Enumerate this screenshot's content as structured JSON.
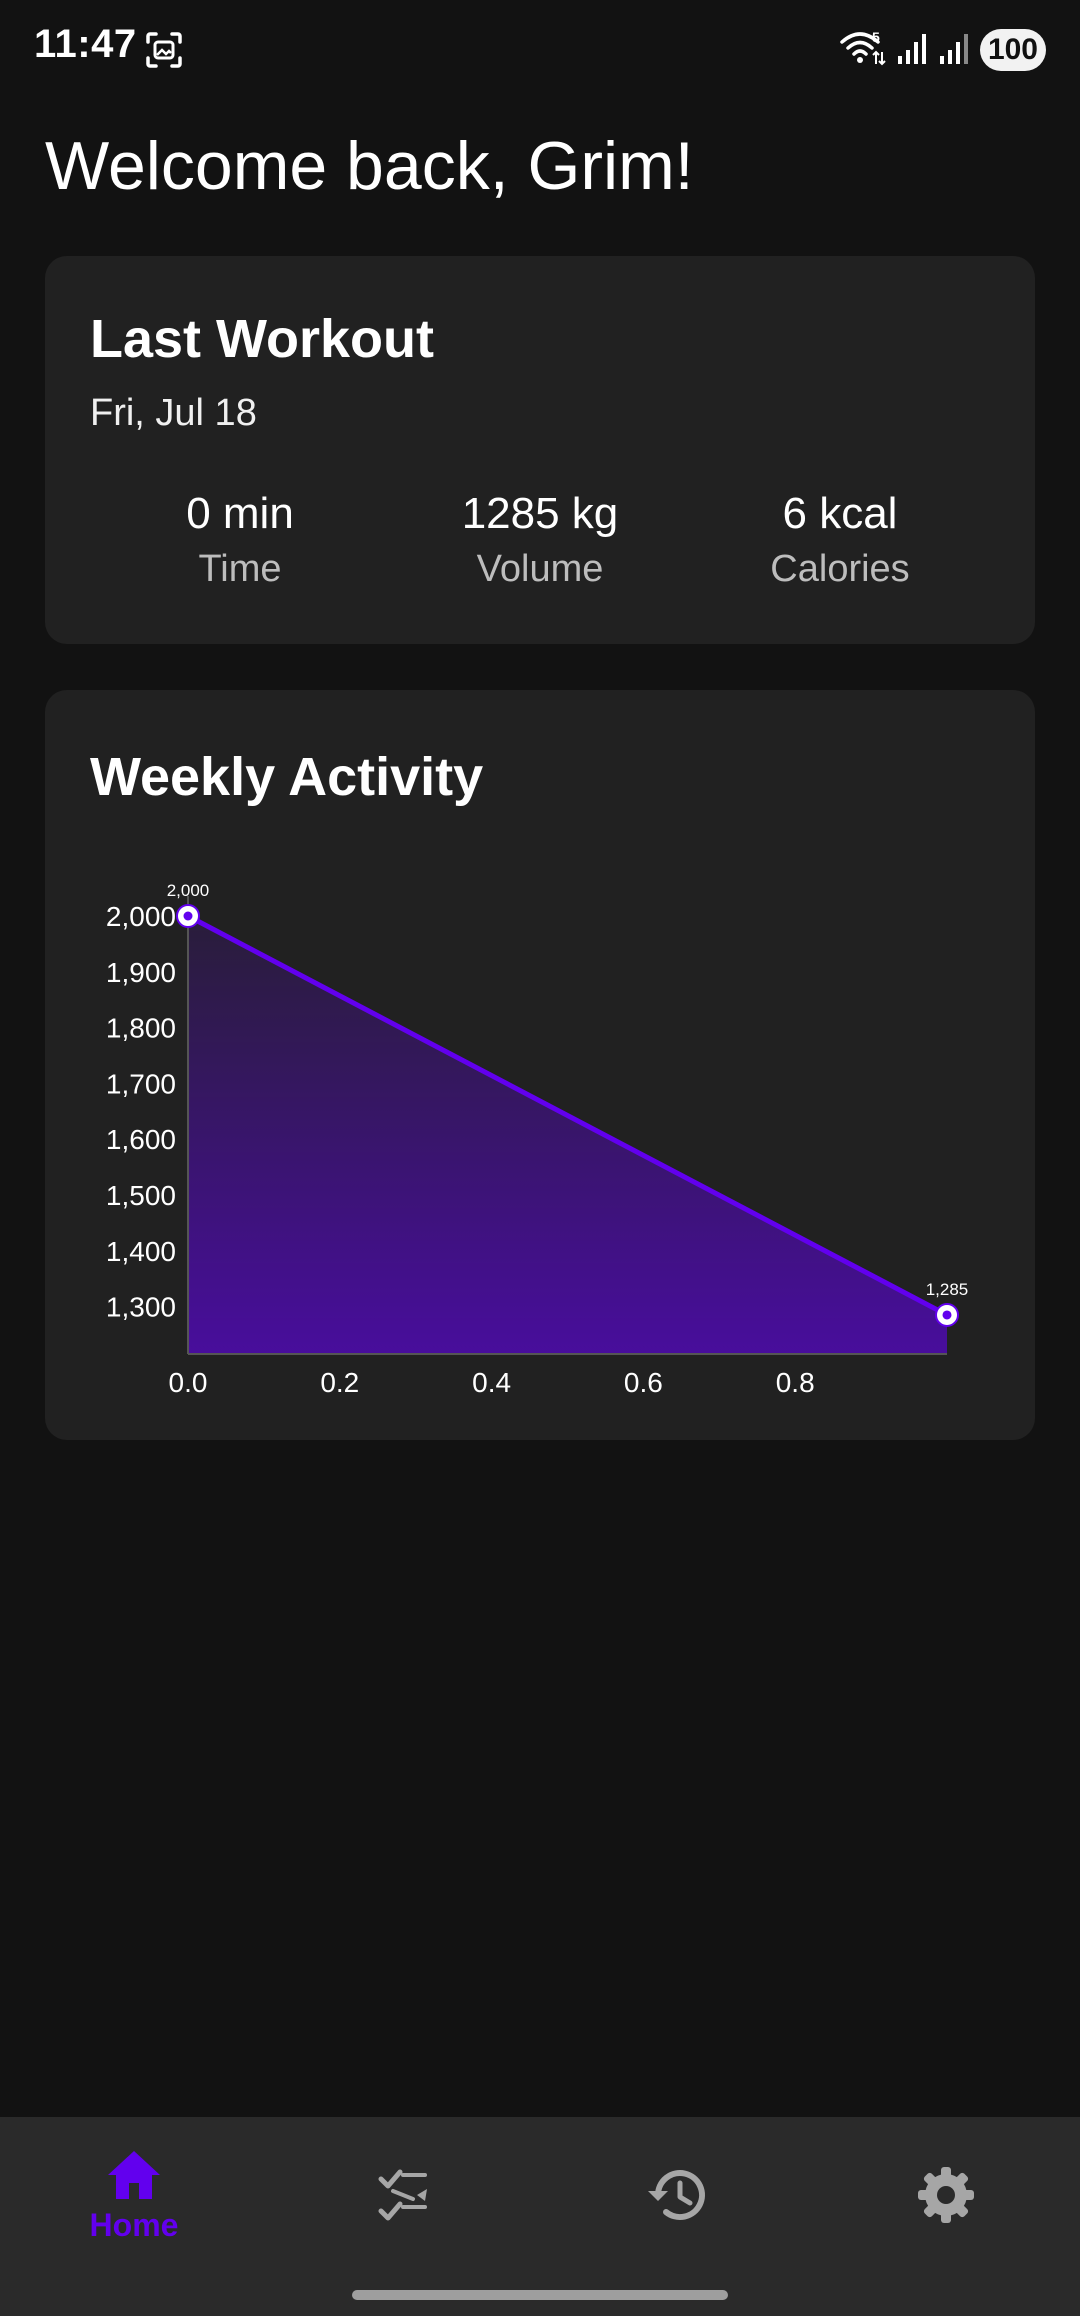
{
  "status_bar": {
    "time": "11:47",
    "battery": "100",
    "icons": [
      "screenshot-icon",
      "wifi-icon",
      "signal-icon",
      "signal-icon",
      "battery-icon"
    ]
  },
  "welcome": "Welcome back, Grim!",
  "last_workout": {
    "title": "Last Workout",
    "date": "Fri, Jul 18",
    "stats": [
      {
        "value": "0 min",
        "label": "Time"
      },
      {
        "value": "1285 kg",
        "label": "Volume"
      },
      {
        "value": "6 kcal",
        "label": "Calories"
      }
    ]
  },
  "weekly_activity": {
    "title": "Weekly Activity"
  },
  "chart_data": {
    "type": "area",
    "title": "Weekly Activity",
    "x": [
      0.0,
      1.0
    ],
    "y": [
      2000,
      1285
    ],
    "point_labels": [
      "2,000",
      "1,285"
    ],
    "x_ticks": [
      "0.0",
      "0.2",
      "0.4",
      "0.6",
      "0.8"
    ],
    "y_ticks": [
      "2,000",
      "1,900",
      "1,800",
      "1,700",
      "1,600",
      "1,500",
      "1,400",
      "1,300"
    ],
    "xlim": [
      0,
      1
    ],
    "ylim": [
      1215,
      2000
    ],
    "grid": false,
    "line_color": "#6200ee"
  },
  "nav": {
    "items": [
      {
        "icon": "home-icon",
        "label": "Home",
        "active": true
      },
      {
        "icon": "workouts-icon",
        "label": "",
        "active": false
      },
      {
        "icon": "history-icon",
        "label": "",
        "active": false
      },
      {
        "icon": "settings-icon",
        "label": "",
        "active": false
      }
    ],
    "active_color": "#6200ee",
    "inactive_color": "#a6a6a6"
  },
  "theme": {
    "background": "#121212",
    "card": "#212121",
    "accent": "#6200ee"
  }
}
